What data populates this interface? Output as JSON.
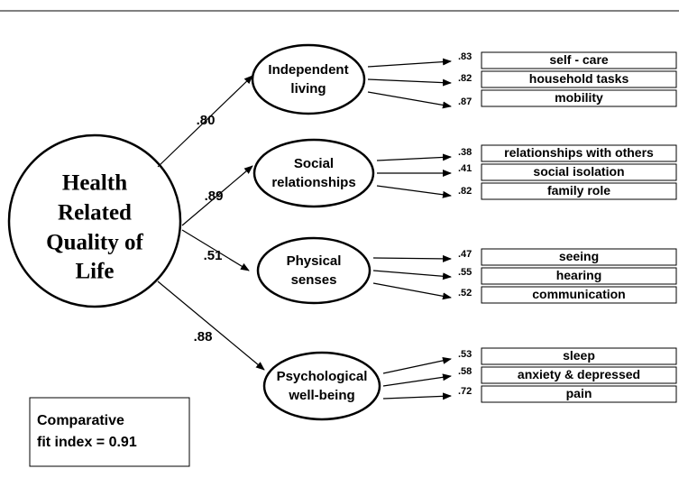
{
  "latent": {
    "lines": [
      "Health",
      "Related",
      "Quality of",
      "Life"
    ]
  },
  "factors": [
    {
      "lines": [
        "Independent",
        "living"
      ],
      "loading": ".80",
      "indicators": [
        {
          "label": "self - care",
          "loading": ".83"
        },
        {
          "label": "household tasks",
          "loading": ".82"
        },
        {
          "label": "mobility",
          "loading": ".87"
        }
      ]
    },
    {
      "lines": [
        "Social",
        "relationships"
      ],
      "loading": ".89",
      "indicators": [
        {
          "label": "relationships with others",
          "loading": ".38"
        },
        {
          "label": "social isolation",
          "loading": ".41"
        },
        {
          "label": "family role",
          "loading": ".82"
        }
      ]
    },
    {
      "lines": [
        "Physical",
        "senses"
      ],
      "loading": ".51",
      "indicators": [
        {
          "label": "seeing",
          "loading": ".47"
        },
        {
          "label": "hearing",
          "loading": ".55"
        },
        {
          "label": "communication",
          "loading": ".52"
        }
      ]
    },
    {
      "lines": [
        "Psychological",
        "well-being"
      ],
      "loading": ".88",
      "indicators": [
        {
          "label": "sleep",
          "loading": ".53"
        },
        {
          "label": "anxiety & depressed",
          "loading": ".58"
        },
        {
          "label": "pain",
          "loading": ".72"
        }
      ]
    }
  ],
  "fit": {
    "lines": [
      "Comparative",
      "fit index = 0.91"
    ]
  }
}
